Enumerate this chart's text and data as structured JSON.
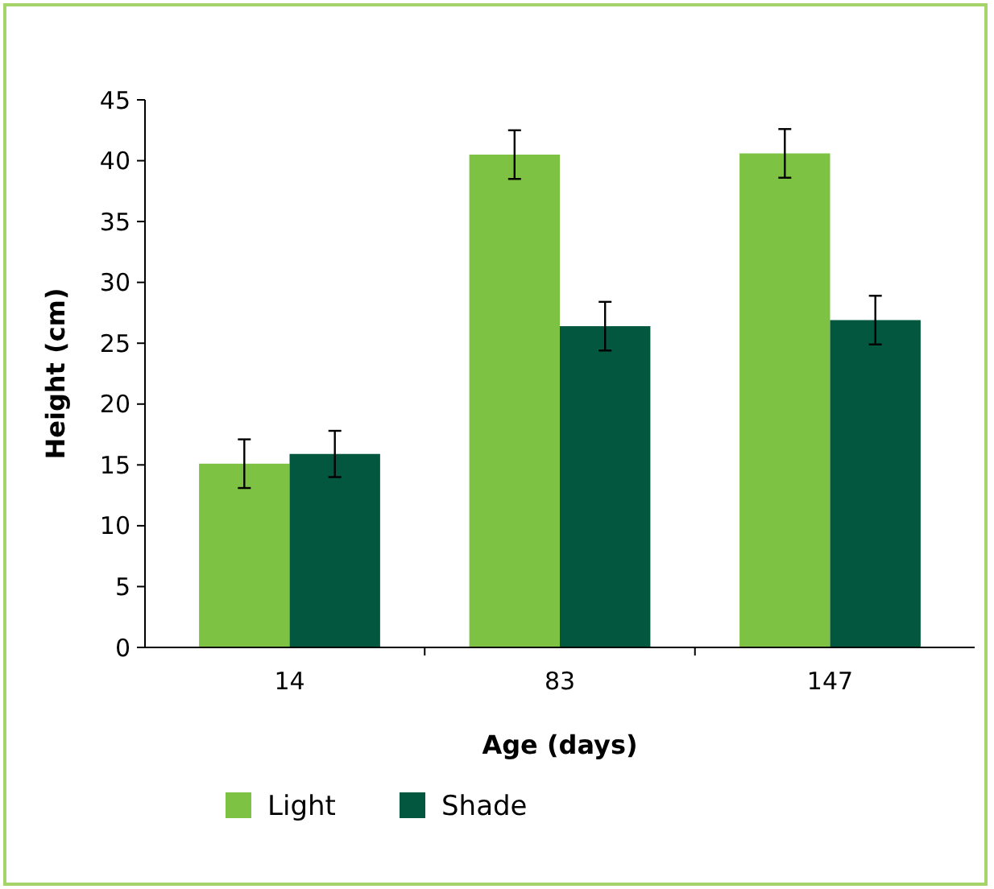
{
  "chart_data": {
    "type": "bar",
    "xlabel": "Age (days)",
    "ylabel": "Height (cm)",
    "categories": [
      "14",
      "83",
      "147"
    ],
    "series": [
      {
        "name": "Light",
        "color": "#7dc243",
        "values": [
          15.1,
          40.5,
          40.6
        ],
        "errors": [
          2,
          2,
          2
        ]
      },
      {
        "name": "Shade",
        "color": "#02573e",
        "values": [
          15.9,
          26.4,
          26.9
        ],
        "errors": [
          1.9,
          2,
          2
        ]
      }
    ],
    "ylim": [
      0,
      45
    ],
    "yticks": [
      0,
      5,
      10,
      15,
      20,
      25,
      30,
      35,
      40,
      45
    ],
    "grid": false,
    "legend": "bottom"
  }
}
